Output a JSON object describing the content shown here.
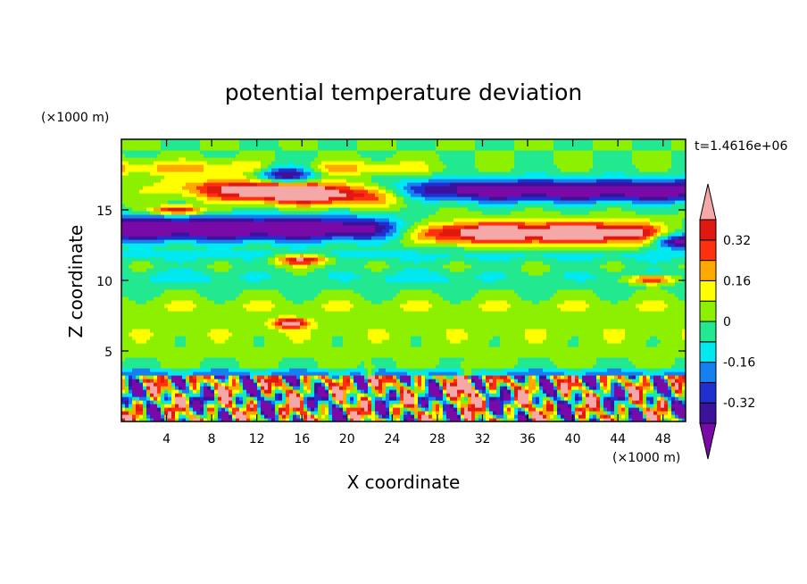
{
  "chart_data": {
    "type": "heatmap",
    "title": "potential temperature deviation",
    "xlabel": "X coordinate",
    "ylabel": "Z coordinate",
    "x_unit": "(×1000 m)",
    "y_unit": "(×1000 m)",
    "time_label": "t=1.4616e+06",
    "xlim": [
      0,
      50
    ],
    "ylim": [
      0,
      20
    ],
    "x_ticks": [
      4,
      8,
      12,
      16,
      20,
      24,
      28,
      32,
      36,
      40,
      44,
      48
    ],
    "x_tick_labels": [
      "4",
      "8",
      "12",
      "16",
      "20",
      "24",
      "28",
      "32",
      "36",
      "40",
      "44",
      "48"
    ],
    "y_ticks": [
      5,
      10,
      15
    ],
    "y_tick_labels": [
      "5",
      "10",
      "15"
    ],
    "colorbar": {
      "levels": [
        -0.4,
        -0.32,
        -0.24,
        -0.16,
        -0.08,
        0,
        0.08,
        0.16,
        0.24,
        0.32,
        0.4
      ],
      "colors": [
        "#7a0aa8",
        "#3c129c",
        "#1f2fd0",
        "#1780f0",
        "#00e8f0",
        "#22e890",
        "#8cf000",
        "#ffff00",
        "#ffa800",
        "#ff3010",
        "#e01810",
        "#f4a8a8"
      ],
      "tick_labels": [
        "0.32",
        "0.16",
        "0",
        "-0.16",
        "-0.32"
      ],
      "tick_values": [
        0.32,
        0.16,
        0,
        -0.16,
        -0.32
      ]
    }
  }
}
